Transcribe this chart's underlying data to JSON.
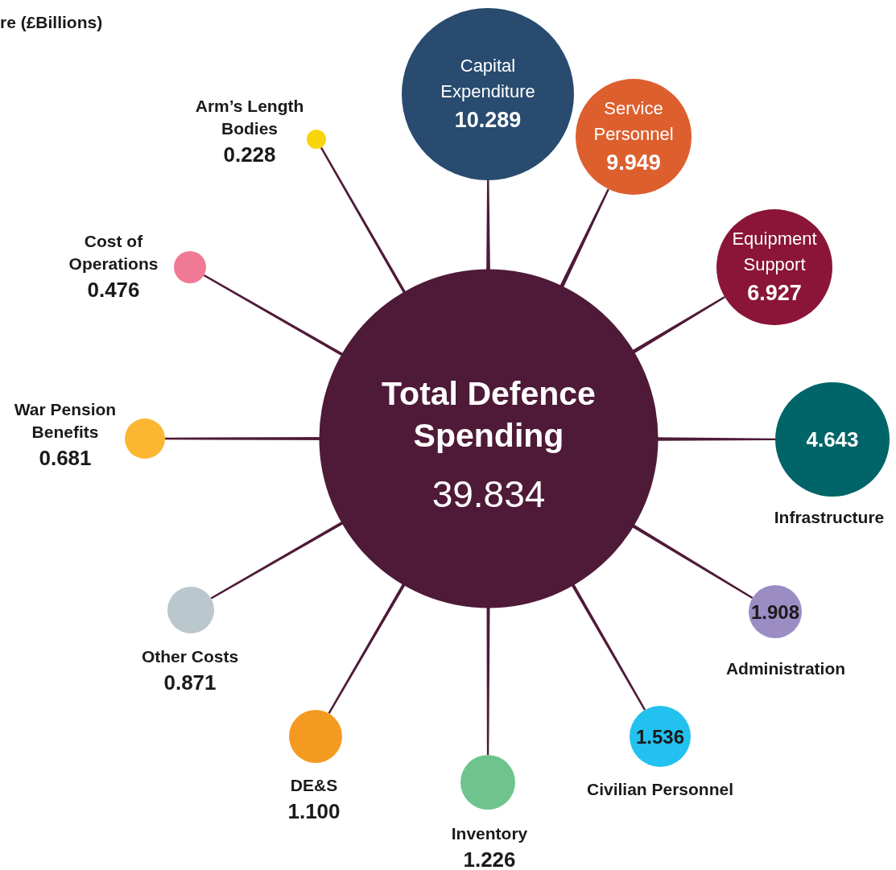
{
  "chart_data": {
    "type": "other",
    "title": "re (£Billions)",
    "categories": [
      "Total Defence Spending",
      "Capital Expenditure",
      "Service Personnel",
      "Equipment Support",
      "Infrastructure",
      "Administration",
      "Civilian Personnel",
      "Inventory",
      "DE&S",
      "Other Costs",
      "War Pension Benefits",
      "Cost of Operations",
      "Arm’s Length Bodies"
    ],
    "values": [
      39.834,
      10.289,
      9.949,
      6.927,
      4.643,
      1.908,
      1.536,
      1.226,
      1.1,
      0.871,
      0.681,
      0.476,
      0.228
    ],
    "colors": [
      "#4e1a38",
      "#284b6f",
      "#dd5f2e",
      "#8a1538",
      "#006468",
      "#9b8dc4",
      "#22c1f0",
      "#6fc48d",
      "#f59a20",
      "#bac7cd",
      "#fbb732",
      "#f07a96",
      "#f9d40c"
    ],
    "value_labels": [
      "39.834",
      "10.289",
      "9.949",
      "6.927",
      "4.643",
      "1.908",
      "1.536",
      "1.226",
      "1.100",
      "0.871",
      "0.681",
      "0.476",
      "0.228"
    ]
  }
}
